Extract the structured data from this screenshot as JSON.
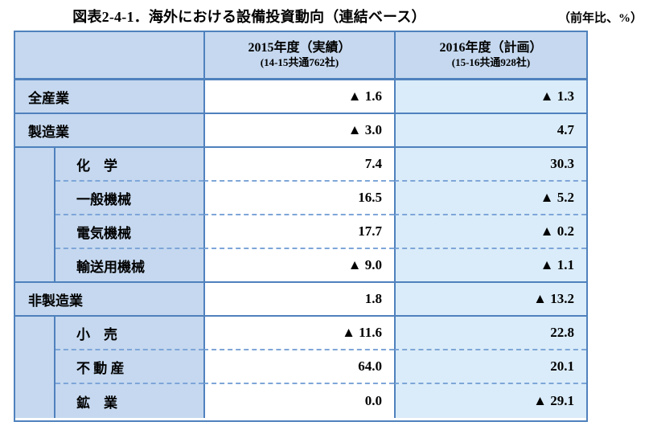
{
  "title": "図表2-4-1．海外における設備投資動向（連結ベース）",
  "unit_note": "（前年比、%）",
  "table": {
    "header": {
      "category": "",
      "col_2015": {
        "label": "2015年度（実績）",
        "sublabel": "(14-15共通762社)"
      },
      "col_2016": {
        "label": "2016年度（計画）",
        "sublabel": "(15-16共通928社)"
      }
    },
    "rows": [
      {
        "label": "全産業",
        "level": "main",
        "v2015": "▲ 1.6",
        "v2016": "▲ 1.3"
      },
      {
        "label": "製造業",
        "level": "main",
        "v2015": "▲ 3.0",
        "v2016": "4.7"
      },
      {
        "label": "化　学",
        "level": "sub",
        "v2015": "7.4",
        "v2016": "30.3"
      },
      {
        "label": "一般機械",
        "level": "sub",
        "v2015": "16.5",
        "v2016": "▲ 5.2"
      },
      {
        "label": "電気機械",
        "level": "sub",
        "v2015": "17.7",
        "v2016": "▲ 0.2"
      },
      {
        "label": "輸送用機械",
        "level": "sub",
        "v2015": "▲ 9.0",
        "v2016": "▲ 1.1"
      },
      {
        "label": "非製造業",
        "level": "main",
        "v2015": "1.8",
        "v2016": "▲ 13.2"
      },
      {
        "label": "小　売",
        "level": "sub",
        "v2015": "▲ 11.6",
        "v2016": "22.8"
      },
      {
        "label": "不 動 産",
        "level": "sub",
        "v2015": "64.0",
        "v2016": "20.1"
      },
      {
        "label": "鉱　業",
        "level": "sub",
        "v2015": "0.0",
        "v2016": "▲ 29.1"
      }
    ]
  },
  "colors": {
    "border": "#4F81BD",
    "dashed_border": "#7EA6D8",
    "header_bg": "#C5D8EF",
    "category_bg": "#C5D8EF",
    "plan_column_bg": "#DAECF9",
    "actual_column_bg": "#FFFFFF",
    "text": "#000000"
  }
}
